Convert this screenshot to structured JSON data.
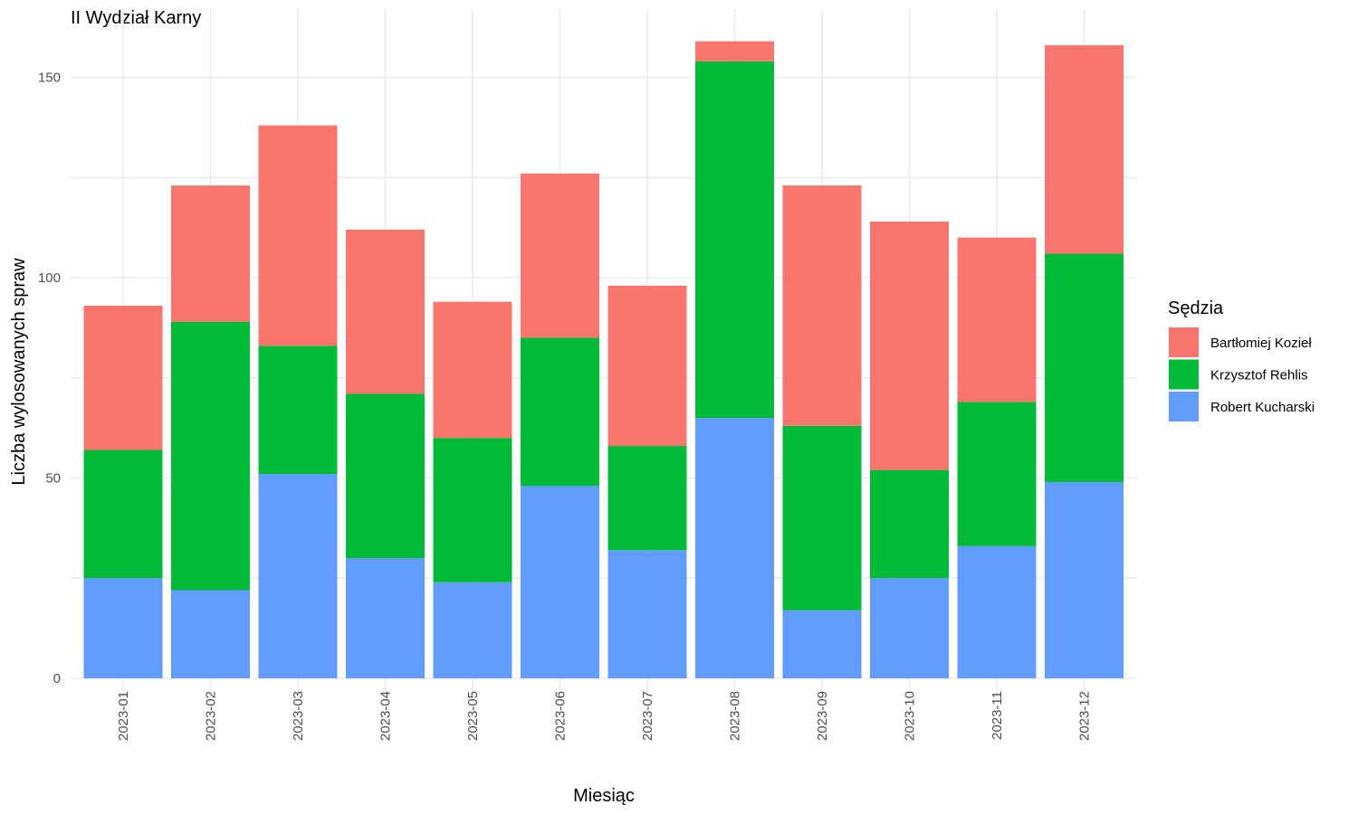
{
  "chart_data": {
    "type": "bar",
    "stacked": true,
    "title": "II Wydział Karny",
    "xlabel": "Miesiąc",
    "ylabel": "Liczba wylosowanych spraw",
    "ylim": [
      0,
      159
    ],
    "yticks": [
      0,
      50,
      100,
      150
    ],
    "grid": true,
    "legend_title": "Sędzia",
    "legend_position": "right",
    "categories": [
      "2023-01",
      "2023-02",
      "2023-03",
      "2023-04",
      "2023-05",
      "2023-06",
      "2023-07",
      "2023-08",
      "2023-09",
      "2023-10",
      "2023-11",
      "2023-12"
    ],
    "series": [
      {
        "name": "Robert Kucharski",
        "color": "#619CFF",
        "values": [
          25,
          22,
          51,
          30,
          24,
          48,
          32,
          65,
          17,
          25,
          33,
          49
        ]
      },
      {
        "name": "Krzysztof Rehlis",
        "color": "#00BA38",
        "values": [
          32,
          67,
          32,
          41,
          36,
          37,
          26,
          89,
          46,
          27,
          36,
          57
        ]
      },
      {
        "name": "Bartłomiej Kozieł",
        "color": "#F8766D",
        "values": [
          36,
          34,
          55,
          41,
          34,
          41,
          40,
          5,
          60,
          62,
          41,
          52
        ]
      }
    ],
    "legend_order": [
      "Bartłomiej Kozieł",
      "Krzysztof Rehlis",
      "Robert Kucharski"
    ]
  }
}
